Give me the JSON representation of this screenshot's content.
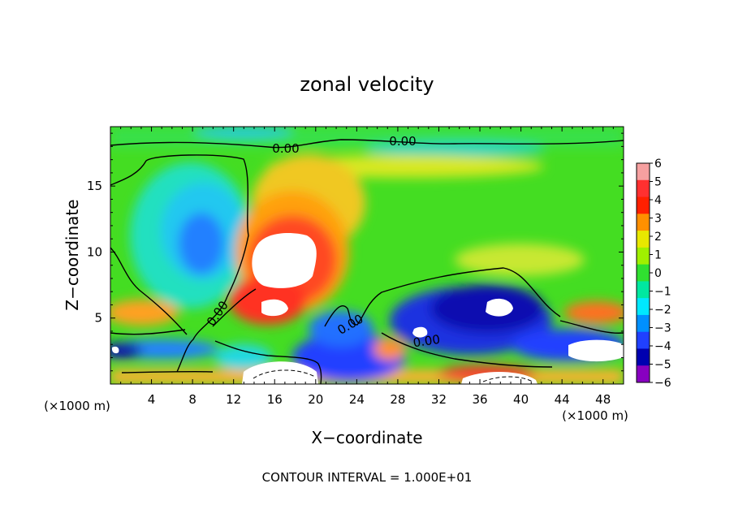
{
  "chart_data": {
    "type": "heatmap",
    "title": "zonal velocity",
    "xlabel": "X−coordinate",
    "ylabel": "Z−coordinate",
    "x_unit_label_left": "(×1000 m)",
    "x_unit_label_right": "(×1000 m)",
    "footer": "CONTOUR INTERVAL = 1.000E+01",
    "xlim": [
      0,
      50
    ],
    "ylim": [
      0,
      19.5
    ],
    "x_ticks": [
      4,
      8,
      12,
      16,
      20,
      24,
      28,
      32,
      36,
      40,
      44,
      48
    ],
    "y_ticks": [
      5,
      10,
      15
    ],
    "contour_labels": [
      "0.00",
      "0.00",
      "0.00",
      "0.00",
      "0.00"
    ],
    "colorbar": {
      "min": -6,
      "max": 6,
      "labels": [
        "6",
        "5",
        "4",
        "3",
        "2",
        "1",
        "0",
        "−1",
        "−2",
        "−3",
        "−4",
        "−5",
        "−6"
      ],
      "colors": [
        "#f6a0a0",
        "#ff3030",
        "#ff2000",
        "#ff9000",
        "#e8e800",
        "#a0f000",
        "#30e030",
        "#00e8a0",
        "#00e8ff",
        "#0090ff",
        "#2040ff",
        "#0000b0",
        "#8800c0"
      ]
    }
  }
}
